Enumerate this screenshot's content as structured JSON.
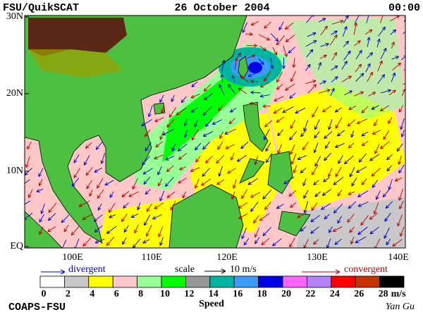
{
  "header": {
    "left": "FSU/QuikSCAT",
    "center": "26 October 2004",
    "right": "00:00"
  },
  "map": {
    "lat_labels": [
      "30N",
      "20N",
      "10N",
      "EQ"
    ],
    "lon_labels": [
      "100E",
      "110E",
      "120E",
      "130E",
      "140E"
    ]
  },
  "legend": {
    "divergent": "divergent",
    "scale": "scale",
    "scale_value": "10 m/s",
    "convergent": "convergent"
  },
  "colorbar": {
    "ticks": [
      "0",
      "2",
      "4",
      "6",
      "8",
      "10",
      "12",
      "14",
      "16",
      "18",
      "20",
      "22",
      "24",
      "26",
      "28"
    ],
    "unit": "m/s",
    "label": "Speed",
    "colors": [
      "#ffffff",
      "#c8c8c8",
      "#ffff00",
      "#ffc8c8",
      "#96ff96",
      "#00ff00",
      "#969696",
      "#00b4a0",
      "#3c9bff",
      "#0000e6",
      "#ff64ff",
      "#b482ff",
      "#ff0000",
      "#c83200",
      "#000000"
    ]
  },
  "footer": {
    "left": "COAPS-FSU",
    "right": "Yan Gu"
  }
}
